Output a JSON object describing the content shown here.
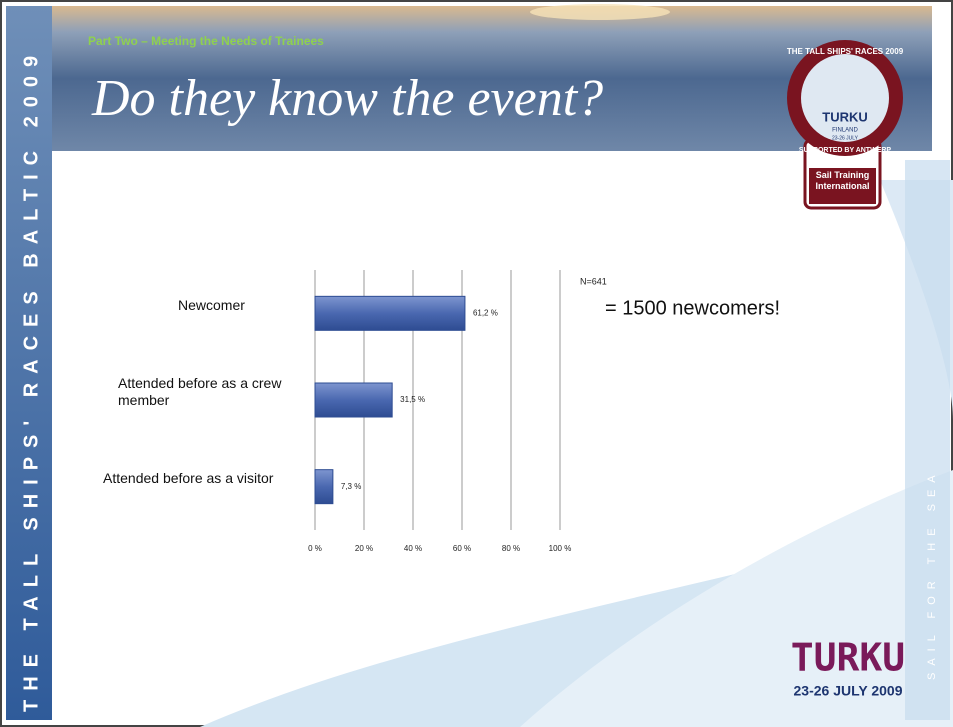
{
  "banner_left": "THE TALL SHIPS' RACES BALTIC 2009",
  "banner_right": "SAIL FOR THE SEA",
  "header": {
    "kicker": "Part Two – Meeting the Needs of Trainees",
    "title": "Do they know the event?"
  },
  "badge": {
    "ring": "THE TALL SHIPS' RACES 2009",
    "city": "TURKU",
    "country": "FINLAND",
    "dates": "23-26 JULY",
    "sponsor": "SUPPORTED BY ANTWERP",
    "org": "Sail Training International"
  },
  "sample_note": "N=641",
  "callout": "= 1500 newcomers!",
  "footer_logo": {
    "city": "TURKU",
    "dates": "23-26 JULY 2009"
  },
  "chart_data": {
    "type": "hbar",
    "categories": [
      "Newcomer",
      "Attended before as a crew member",
      "Attended before as a visitor"
    ],
    "values": [
      61.2,
      31.5,
      7.3
    ],
    "value_labels": [
      "61,2 %",
      "31,5 %",
      "7,3 %"
    ],
    "color": "#4a68b0",
    "xlim": [
      0,
      100
    ],
    "xticks": [
      {
        "value": 0,
        "label": "0 %"
      },
      {
        "value": 20,
        "label": "20 %"
      },
      {
        "value": 40,
        "label": "40 %"
      },
      {
        "value": 60,
        "label": "60 %"
      },
      {
        "value": 80,
        "label": "80 %"
      },
      {
        "value": 100,
        "label": "100 %"
      }
    ],
    "grid": true
  }
}
